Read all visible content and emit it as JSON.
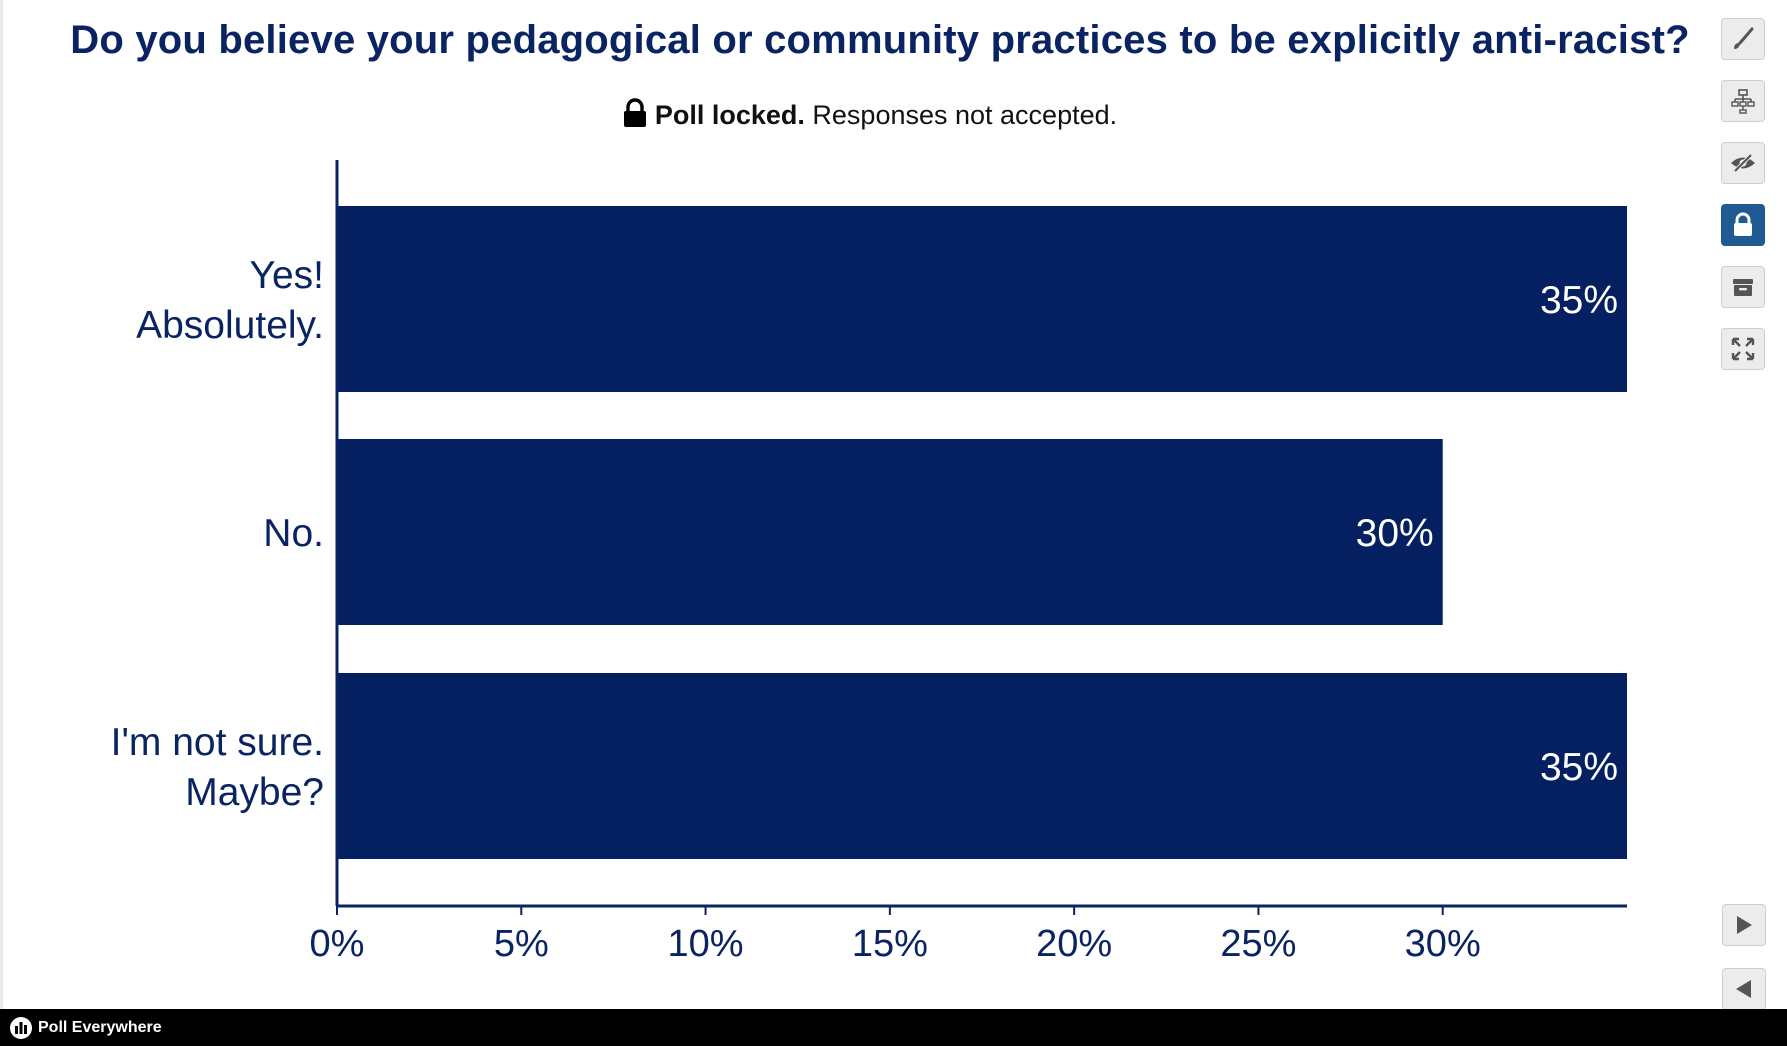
{
  "poll": {
    "question": "Do you believe your pedagogical or community practices to be explicitly anti-racist?",
    "status_bold": "Poll locked.",
    "status_text": "Responses not accepted."
  },
  "chart_data": {
    "type": "bar",
    "orientation": "horizontal",
    "title": "Do you believe your pedagogical or community practices to be explicitly anti-racist?",
    "categories": [
      [
        "Yes!",
        "Absolutely."
      ],
      [
        "No."
      ],
      [
        "I'm not sure.",
        "Maybe?"
      ]
    ],
    "values": [
      35,
      30,
      35
    ],
    "value_labels": [
      "35%",
      "30%",
      "35%"
    ],
    "x_ticks": [
      0,
      5,
      10,
      15,
      20,
      25,
      30
    ],
    "x_tick_labels": [
      "0%",
      "5%",
      "10%",
      "15%",
      "20%",
      "25%",
      "30%"
    ],
    "xlim": [
      0,
      35
    ],
    "bar_color": "#052061",
    "axis_color": "#0a2463"
  },
  "toolbar": {
    "items": [
      {
        "name": "annotate-button",
        "icon": "brush-icon"
      },
      {
        "name": "segment-button",
        "icon": "hierarchy-icon"
      },
      {
        "name": "hide-responses-button",
        "icon": "eye-slash-icon"
      },
      {
        "name": "lock-button",
        "icon": "lock-icon",
        "active": true
      },
      {
        "name": "archive-button",
        "icon": "archive-icon"
      },
      {
        "name": "fullscreen-button",
        "icon": "expand-icon"
      }
    ]
  },
  "footer": {
    "brand": "Poll Everywhere"
  }
}
